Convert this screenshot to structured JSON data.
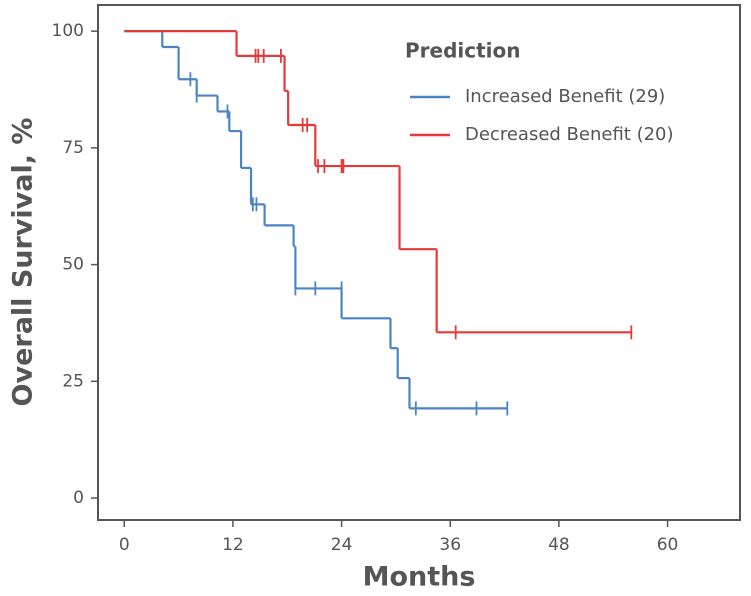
{
  "chart_data": {
    "type": "step",
    "x_label": "Months",
    "y_label": "Overall Survival, %",
    "legend_title": "Prediction",
    "legend_position": "upper right",
    "xlim": [
      -2.9,
      68
    ],
    "ylim": [
      -4.7,
      105.6
    ],
    "xticks": [
      0,
      12,
      24,
      36,
      48,
      60
    ],
    "yticks": [
      0,
      25,
      50,
      75,
      100
    ],
    "grid": false,
    "series": [
      {
        "name": "Increased Benefit (29)",
        "color": "#4a84c4",
        "x": [
          0,
          4.2,
          6.0,
          8.0,
          10.3,
          11.6,
          12.9,
          14.0,
          15.5,
          18.7,
          18.9,
          24,
          29.4,
          30.2,
          31.5,
          42.3
        ],
        "values": [
          100,
          96.6,
          89.7,
          86.2,
          82.8,
          78.6,
          70.7,
          62.9,
          58.4,
          53.9,
          44.9,
          38.5,
          32.1,
          25.7,
          19.2,
          19.2
        ],
        "censor_x": [
          7.3,
          8.0,
          11.4,
          14.2,
          14.6,
          18.9,
          21.1,
          24.0,
          32.2,
          38.9,
          42.3
        ],
        "censor_values": [
          89.7,
          86.2,
          82.8,
          62.9,
          62.9,
          44.9,
          44.9,
          44.9,
          19.2,
          19.2,
          19.2
        ]
      },
      {
        "name": "Decreased Benefit (20)",
        "color": "#e53a3a",
        "x": [
          0,
          12.4,
          17.7,
          18.1,
          21.1,
          30.4,
          34.5,
          56
        ],
        "values": [
          100,
          94.7,
          87.2,
          79.9,
          71.1,
          53.3,
          35.5,
          35.5
        ],
        "censor_x": [
          14.5,
          14.8,
          15.4,
          17.3,
          19.7,
          20.2,
          21.4,
          22.1,
          24.0,
          24.2,
          36.6,
          56
        ],
        "censor_values": [
          94.7,
          94.7,
          94.7,
          94.7,
          79.9,
          79.9,
          71.1,
          71.1,
          71.1,
          71.1,
          35.5,
          35.5
        ]
      }
    ]
  }
}
